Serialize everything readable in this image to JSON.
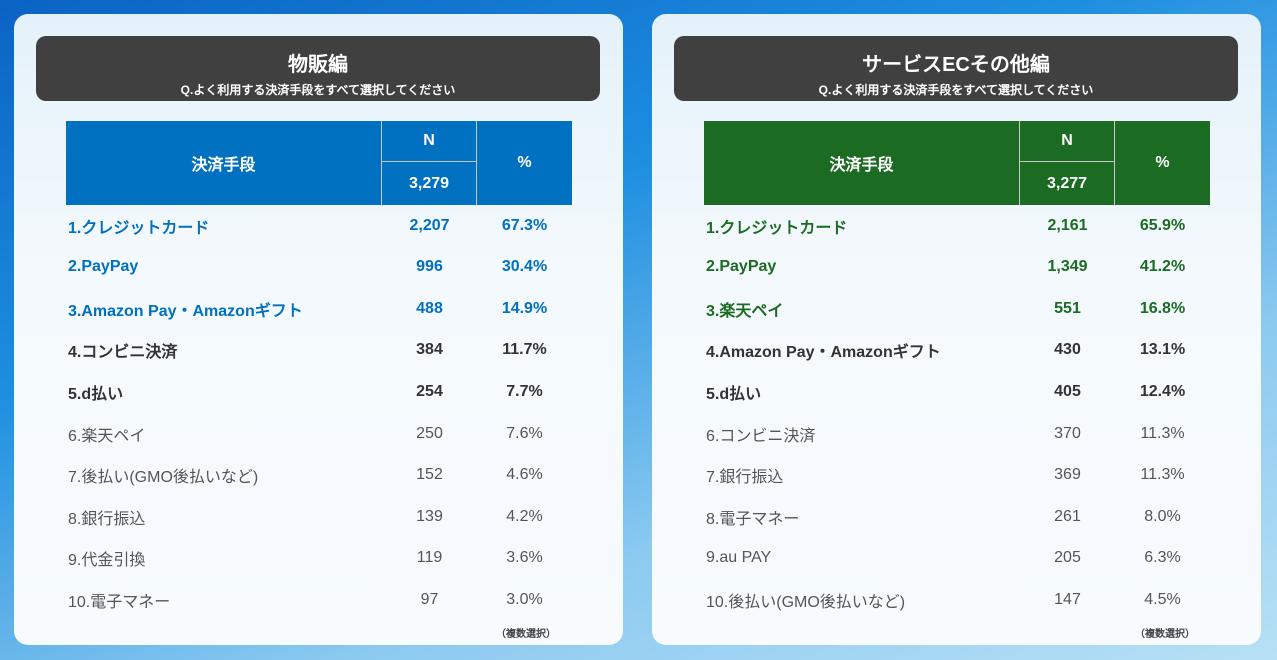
{
  "panels": [
    {
      "title": "物販編",
      "question": "Q.よく利用する決済手段をすべて選択してください",
      "accent": "#0070c0",
      "header": {
        "method": "決済手段",
        "n": "N",
        "total": "3,279",
        "pct": "%"
      },
      "rows": [
        {
          "label": "1.クレジットカード",
          "n": "2,207",
          "pct": "67.3%"
        },
        {
          "label": "2.PayPay",
          "n": "996",
          "pct": "30.4%"
        },
        {
          "label": "3.Amazon Pay・Amazonギフト",
          "n": "488",
          "pct": "14.9%"
        },
        {
          "label": "4.コンビニ決済",
          "n": "384",
          "pct": "11.7%"
        },
        {
          "label": "5.d払い",
          "n": "254",
          "pct": "7.7%"
        },
        {
          "label": "6.楽天ペイ",
          "n": "250",
          "pct": "7.6%"
        },
        {
          "label": "7.後払い(GMO後払いなど)",
          "n": "152",
          "pct": "4.6%"
        },
        {
          "label": "8.銀行振込",
          "n": "139",
          "pct": "4.2%"
        },
        {
          "label": "9.代金引換",
          "n": "119",
          "pct": "3.6%"
        },
        {
          "label": "10.電子マネー",
          "n": "97",
          "pct": "3.0%"
        }
      ],
      "note": "（複数選択）"
    },
    {
      "title": "サービスECその他編",
      "question": "Q.よく利用する決済手段をすべて選択してください",
      "accent": "#1b6b22",
      "header": {
        "method": "決済手段",
        "n": "N",
        "total": "3,277",
        "pct": "%"
      },
      "rows": [
        {
          "label": "1.クレジットカード",
          "n": "2,161",
          "pct": "65.9%"
        },
        {
          "label": "2.PayPay",
          "n": "1,349",
          "pct": "41.2%"
        },
        {
          "label": "3.楽天ペイ",
          "n": "551",
          "pct": "16.8%"
        },
        {
          "label": "4.Amazon Pay・Amazonギフト",
          "n": "430",
          "pct": "13.1%"
        },
        {
          "label": "5.d払い",
          "n": "405",
          "pct": "12.4%"
        },
        {
          "label": "6.コンビニ決済",
          "n": "370",
          "pct": "11.3%"
        },
        {
          "label": "7.銀行振込",
          "n": "369",
          "pct": "11.3%"
        },
        {
          "label": "8.電子マネー",
          "n": "261",
          "pct": "8.0%"
        },
        {
          "label": "9.au PAY",
          "n": "205",
          "pct": "6.3%"
        },
        {
          "label": "10.後払い(GMO後払いなど)",
          "n": "147",
          "pct": "4.5%"
        }
      ],
      "note": "（複数選択）"
    }
  ]
}
